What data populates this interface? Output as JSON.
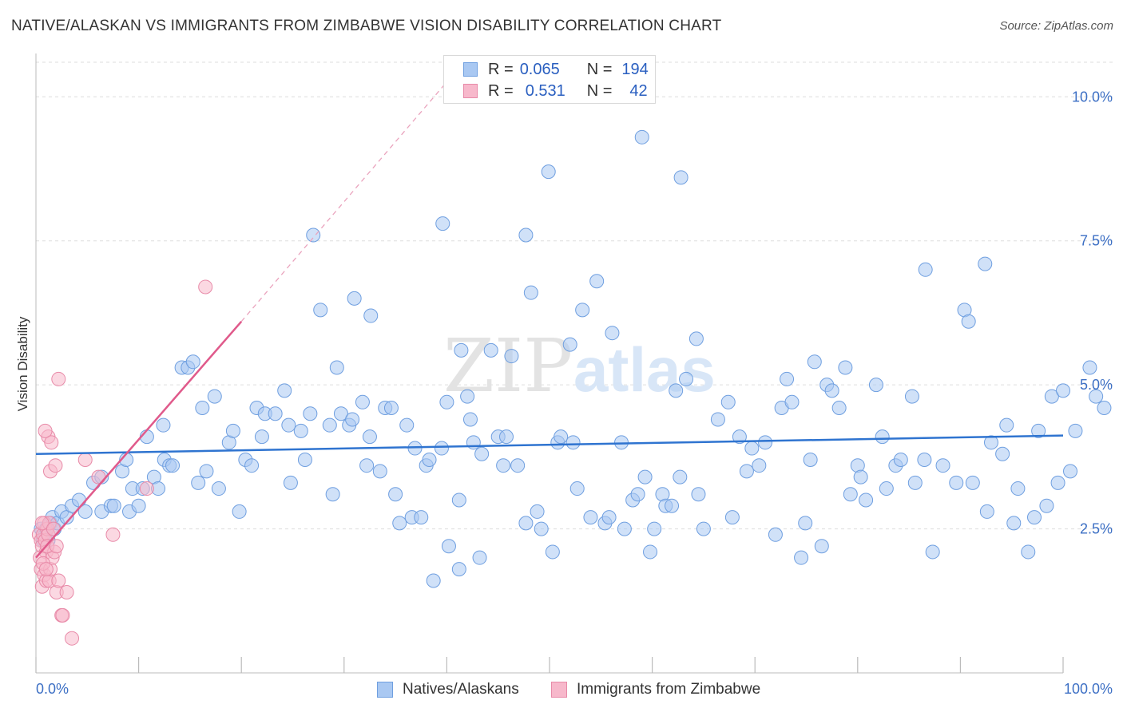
{
  "title": "NATIVE/ALASKAN VS IMMIGRANTS FROM ZIMBABWE VISION DISABILITY CORRELATION CHART",
  "source": "Source: ZipAtlas.com",
  "watermark": {
    "part1": "ZIP",
    "part2": "atlas"
  },
  "stats": [
    {
      "r_label": "R =",
      "r_value": "0.065",
      "n_label": "N =",
      "n_value": "194",
      "color": "#a9c8f2",
      "border": "#6f9fe0"
    },
    {
      "r_label": "R =",
      "r_value": "0.531",
      "n_label": "N =",
      "n_value": "42",
      "color": "#f7b8cb",
      "border": "#e88aa8"
    }
  ],
  "legend": [
    {
      "label": "Natives/Alaskans",
      "color": "#a9c8f2",
      "border": "#6f9fe0"
    },
    {
      "label": "Immigrants from Zimbabwe",
      "color": "#f7b8cb",
      "border": "#e88aa8"
    }
  ],
  "chart_data": {
    "type": "scatter",
    "title": "NATIVE/ALASKAN VS IMMIGRANTS FROM ZIMBABWE VISION DISABILITY CORRELATION CHART",
    "xlabel": "",
    "ylabel": "Vision Disability",
    "x_unit": "%",
    "y_unit": "%",
    "xlim": [
      0,
      100
    ],
    "ylim": [
      0,
      10.6
    ],
    "x_tick_labels": [
      "0.0%",
      "100.0%"
    ],
    "y_ticks": [
      2.5,
      5.0,
      7.5,
      10.0
    ],
    "y_tick_labels": [
      "2.5%",
      "5.0%",
      "7.5%",
      "10.0%"
    ],
    "grid": true,
    "legend_position": "bottom-center",
    "series": [
      {
        "name": "Natives/Alaskans",
        "color": "#a9c8f2",
        "stroke": "#6f9fe0",
        "trend_color": "#2f74d0",
        "trend": {
          "x": [
            0,
            100
          ],
          "y": [
            3.8,
            4.12
          ]
        },
        "points": [
          [
            0.5,
            2.5
          ],
          [
            0.7,
            2.3
          ],
          [
            0.9,
            2.4
          ],
          [
            1.0,
            2.5
          ],
          [
            1.2,
            2.3
          ],
          [
            1.4,
            2.6
          ],
          [
            1.6,
            2.7
          ],
          [
            1.8,
            2.5
          ],
          [
            2.1,
            2.6
          ],
          [
            2.5,
            2.8
          ],
          [
            3.0,
            2.7
          ],
          [
            3.5,
            2.9
          ],
          [
            4.2,
            3.0
          ],
          [
            4.8,
            2.8
          ],
          [
            5.6,
            3.3
          ],
          [
            6.4,
            3.4
          ],
          [
            6.4,
            2.8
          ],
          [
            7.3,
            2.9
          ],
          [
            7.6,
            2.9
          ],
          [
            8.4,
            3.5
          ],
          [
            8.8,
            3.7
          ],
          [
            9.1,
            2.8
          ],
          [
            9.4,
            3.2
          ],
          [
            10.0,
            2.9
          ],
          [
            10.4,
            3.2
          ],
          [
            10.8,
            4.1
          ],
          [
            11.5,
            3.4
          ],
          [
            11.9,
            3.2
          ],
          [
            12.4,
            4.3
          ],
          [
            12.5,
            3.7
          ],
          [
            13.0,
            3.6
          ],
          [
            13.3,
            3.6
          ],
          [
            14.2,
            5.3
          ],
          [
            14.8,
            5.3
          ],
          [
            15.3,
            5.4
          ],
          [
            15.8,
            3.3
          ],
          [
            16.2,
            4.6
          ],
          [
            16.6,
            3.5
          ],
          [
            17.4,
            4.8
          ],
          [
            17.8,
            3.2
          ],
          [
            18.8,
            4.0
          ],
          [
            19.2,
            4.2
          ],
          [
            19.8,
            2.8
          ],
          [
            20.4,
            3.7
          ],
          [
            21.0,
            3.6
          ],
          [
            21.5,
            4.6
          ],
          [
            22.0,
            4.1
          ],
          [
            22.3,
            4.5
          ],
          [
            23.3,
            4.5
          ],
          [
            24.2,
            4.9
          ],
          [
            24.6,
            4.3
          ],
          [
            24.8,
            3.3
          ],
          [
            25.8,
            4.2
          ],
          [
            26.2,
            3.7
          ],
          [
            26.7,
            4.5
          ],
          [
            27.0,
            7.6
          ],
          [
            27.7,
            6.3
          ],
          [
            28.6,
            4.3
          ],
          [
            28.9,
            3.1
          ],
          [
            29.3,
            5.3
          ],
          [
            29.7,
            4.5
          ],
          [
            30.5,
            4.3
          ],
          [
            30.8,
            4.4
          ],
          [
            31.0,
            6.5
          ],
          [
            31.8,
            4.7
          ],
          [
            32.2,
            3.6
          ],
          [
            32.5,
            4.1
          ],
          [
            32.6,
            6.2
          ],
          [
            33.5,
            3.5
          ],
          [
            34.0,
            4.6
          ],
          [
            34.6,
            4.6
          ],
          [
            35.0,
            3.1
          ],
          [
            35.4,
            2.6
          ],
          [
            36.1,
            4.3
          ],
          [
            36.6,
            2.7
          ],
          [
            36.9,
            3.9
          ],
          [
            37.5,
            2.7
          ],
          [
            38.0,
            3.6
          ],
          [
            38.3,
            3.7
          ],
          [
            38.7,
            1.6
          ],
          [
            39.5,
            3.9
          ],
          [
            39.6,
            7.8
          ],
          [
            40.0,
            4.7
          ],
          [
            40.2,
            2.2
          ],
          [
            41.2,
            3.0
          ],
          [
            41.2,
            1.8
          ],
          [
            41.4,
            5.6
          ],
          [
            42.0,
            4.8
          ],
          [
            42.3,
            4.4
          ],
          [
            42.6,
            4.0
          ],
          [
            43.2,
            2.0
          ],
          [
            43.4,
            3.8
          ],
          [
            44.3,
            5.6
          ],
          [
            45.0,
            4.1
          ],
          [
            45.5,
            3.6
          ],
          [
            45.8,
            4.1
          ],
          [
            46.3,
            5.5
          ],
          [
            46.9,
            3.6
          ],
          [
            47.7,
            2.6
          ],
          [
            47.7,
            7.6
          ],
          [
            48.2,
            6.6
          ],
          [
            48.8,
            2.8
          ],
          [
            49.2,
            2.5
          ],
          [
            49.9,
            8.7
          ],
          [
            50.3,
            2.1
          ],
          [
            50.8,
            4.0
          ],
          [
            51.1,
            4.1
          ],
          [
            52.0,
            5.7
          ],
          [
            52.3,
            4.0
          ],
          [
            52.7,
            3.2
          ],
          [
            53.2,
            6.3
          ],
          [
            54.0,
            2.7
          ],
          [
            54.6,
            6.8
          ],
          [
            55.4,
            2.6
          ],
          [
            55.8,
            2.7
          ],
          [
            56.1,
            5.9
          ],
          [
            57.0,
            4.0
          ],
          [
            57.3,
            2.5
          ],
          [
            58.1,
            3.0
          ],
          [
            58.6,
            3.1
          ],
          [
            59.0,
            9.3
          ],
          [
            59.3,
            3.4
          ],
          [
            59.8,
            2.1
          ],
          [
            60.2,
            2.5
          ],
          [
            61.0,
            3.1
          ],
          [
            61.3,
            2.9
          ],
          [
            61.9,
            2.9
          ],
          [
            62.8,
            8.6
          ],
          [
            62.3,
            4.9
          ],
          [
            62.7,
            3.4
          ],
          [
            63.3,
            5.1
          ],
          [
            64.3,
            5.8
          ],
          [
            64.5,
            3.1
          ],
          [
            65.0,
            2.5
          ],
          [
            66.4,
            4.4
          ],
          [
            67.4,
            4.7
          ],
          [
            67.8,
            2.7
          ],
          [
            68.5,
            4.1
          ],
          [
            69.2,
            3.5
          ],
          [
            69.7,
            3.9
          ],
          [
            70.4,
            3.6
          ],
          [
            71.0,
            4.0
          ],
          [
            72.0,
            2.4
          ],
          [
            72.6,
            4.6
          ],
          [
            73.1,
            5.1
          ],
          [
            73.6,
            4.7
          ],
          [
            74.5,
            2.0
          ],
          [
            74.9,
            2.6
          ],
          [
            75.4,
            3.7
          ],
          [
            75.8,
            5.4
          ],
          [
            76.5,
            2.2
          ],
          [
            77.0,
            5.0
          ],
          [
            77.5,
            4.9
          ],
          [
            78.2,
            4.6
          ],
          [
            78.8,
            5.3
          ],
          [
            79.3,
            3.1
          ],
          [
            80.0,
            3.6
          ],
          [
            80.3,
            3.4
          ],
          [
            80.8,
            3.0
          ],
          [
            81.8,
            5.0
          ],
          [
            82.4,
            4.1
          ],
          [
            82.8,
            3.2
          ],
          [
            83.7,
            3.6
          ],
          [
            84.2,
            3.7
          ],
          [
            85.3,
            4.8
          ],
          [
            85.6,
            3.3
          ],
          [
            86.5,
            3.7
          ],
          [
            86.6,
            7.0
          ],
          [
            87.3,
            2.1
          ],
          [
            88.3,
            3.6
          ],
          [
            89.6,
            3.3
          ],
          [
            90.4,
            6.3
          ],
          [
            90.8,
            6.1
          ],
          [
            91.2,
            3.3
          ],
          [
            92.4,
            7.1
          ],
          [
            92.6,
            2.8
          ],
          [
            93.0,
            4.0
          ],
          [
            94.1,
            3.8
          ],
          [
            94.5,
            4.3
          ],
          [
            95.2,
            2.6
          ],
          [
            95.6,
            3.2
          ],
          [
            96.6,
            2.1
          ],
          [
            97.2,
            2.7
          ],
          [
            97.6,
            4.2
          ],
          [
            98.4,
            2.9
          ],
          [
            98.9,
            4.8
          ],
          [
            99.5,
            3.3
          ],
          [
            100.0,
            4.9
          ],
          [
            100.7,
            3.5
          ],
          [
            101.2,
            4.2
          ],
          [
            102.6,
            5.3
          ],
          [
            103.2,
            4.8
          ],
          [
            104.0,
            4.6
          ]
        ]
      },
      {
        "name": "Immigrants from Zimbabwe",
        "color": "#f7b8cb",
        "stroke": "#e88aa8",
        "trend_color": "#e05a8b",
        "trend": {
          "x": [
            0,
            20
          ],
          "y": [
            2.0,
            6.1
          ]
        },
        "trend_dashed_extension": {
          "x": [
            20,
            40.2
          ],
          "y": [
            6.1,
            10.3
          ]
        },
        "points": [
          [
            0.3,
            2.4
          ],
          [
            0.5,
            2.3
          ],
          [
            0.6,
            2.2
          ],
          [
            0.7,
            2.4
          ],
          [
            0.8,
            2.6
          ],
          [
            0.9,
            2.3
          ],
          [
            1.0,
            2.1
          ],
          [
            1.1,
            2.5
          ],
          [
            1.2,
            2.4
          ],
          [
            0.4,
            2.0
          ],
          [
            0.5,
            1.8
          ],
          [
            0.6,
            1.5
          ],
          [
            0.8,
            1.7
          ],
          [
            1.0,
            1.6
          ],
          [
            1.3,
            1.6
          ],
          [
            1.4,
            1.8
          ],
          [
            1.6,
            2.0
          ],
          [
            0.7,
            1.9
          ],
          [
            1.0,
            1.8
          ],
          [
            1.2,
            4.1
          ],
          [
            1.5,
            4.0
          ],
          [
            1.8,
            2.1
          ],
          [
            2.0,
            1.4
          ],
          [
            2.2,
            1.6
          ],
          [
            2.5,
            1.0
          ],
          [
            1.4,
            3.5
          ],
          [
            1.9,
            3.6
          ],
          [
            2.2,
            5.1
          ],
          [
            2.6,
            1.0
          ],
          [
            3.0,
            1.4
          ],
          [
            3.5,
            0.6
          ],
          [
            4.8,
            3.7
          ],
          [
            6.1,
            3.4
          ],
          [
            7.5,
            2.4
          ],
          [
            10.8,
            3.2
          ],
          [
            16.5,
            6.7
          ],
          [
            0.9,
            4.2
          ],
          [
            1.3,
            2.6
          ],
          [
            1.1,
            2.2
          ],
          [
            0.6,
            2.6
          ],
          [
            1.7,
            2.5
          ],
          [
            2.0,
            2.2
          ]
        ]
      }
    ]
  }
}
